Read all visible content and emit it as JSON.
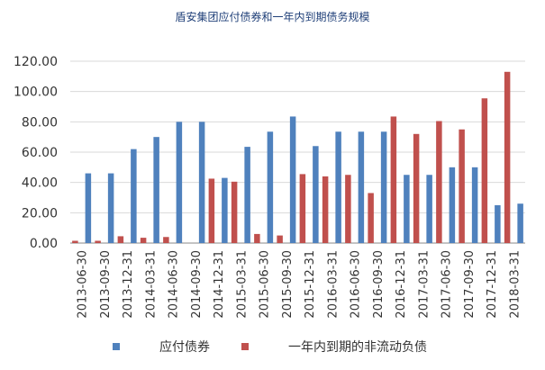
{
  "chart_data": {
    "type": "bar",
    "title": "盾安集团应付债券和一年内到期债务规模",
    "categories": [
      "2013-06-30",
      "2013-09-30",
      "2013-12-31",
      "2014-03-31",
      "2014-06-30",
      "2014-09-30",
      "2014-12-31",
      "2015-03-31",
      "2015-06-30",
      "2015-09-30",
      "2015-12-31",
      "2016-03-31",
      "2016-06-30",
      "2016-09-30",
      "2016-12-31",
      "2017-03-31",
      "2017-06-30",
      "2017-09-30",
      "2017-12-31",
      "2018-03-31"
    ],
    "series": [
      {
        "name": "应付债券",
        "color": "#4f81bd",
        "values": [
          46,
          46,
          62,
          70,
          80,
          80,
          43,
          63.5,
          73.5,
          83.5,
          64,
          73.5,
          73.5,
          73.5,
          45,
          45,
          50,
          50,
          25,
          26
        ]
      },
      {
        "name": "一年内到期的非流动负债",
        "color": "#c0504d",
        "values": [
          1.5,
          1.5,
          4.5,
          3.5,
          4,
          0,
          42.5,
          40.5,
          6,
          5,
          45.5,
          44,
          45,
          33,
          83.5,
          72,
          80.5,
          75,
          95.5,
          113
        ]
      }
    ],
    "ylim": [
      0,
      120
    ],
    "yticks": [
      "0.00",
      "20.00",
      "40.00",
      "60.00",
      "80.00",
      "100.00",
      "120.00"
    ],
    "grid": true,
    "legend_position": "bottom"
  }
}
